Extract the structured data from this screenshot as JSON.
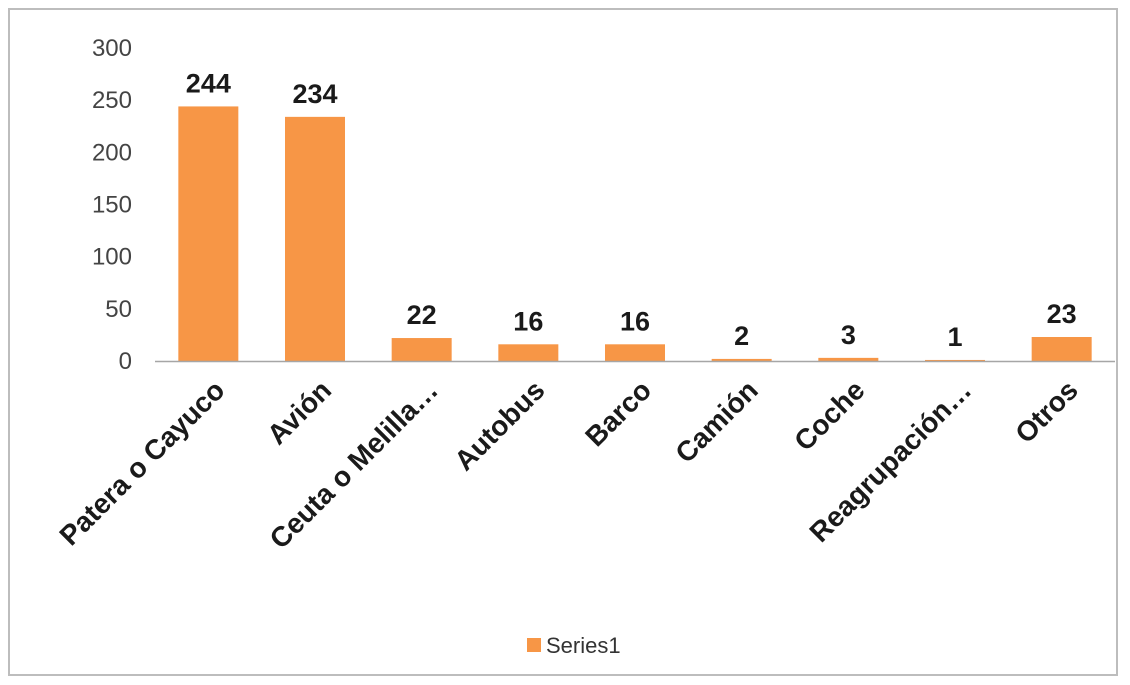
{
  "chart_data": {
    "type": "bar",
    "categories": [
      "Patera o Cayuco",
      "Avión",
      "Ceuta o Melilla…",
      "Autobus",
      "Barco",
      "Camión",
      "Coche",
      "Reagrupación…",
      "Otros"
    ],
    "series": [
      {
        "name": "Series1",
        "values": [
          244,
          234,
          22,
          16,
          16,
          2,
          3,
          1,
          23
        ],
        "color": "#f79646"
      }
    ],
    "data_labels": [
      "244",
      "234",
      "22",
      "16",
      "16",
      "2",
      "3",
      "1",
      "23"
    ],
    "ylim": [
      0,
      300
    ],
    "y_ticks": [
      0,
      50,
      100,
      150,
      200,
      250,
      300
    ],
    "y_tick_labels": [
      "0",
      "50",
      "100",
      "150",
      "200",
      "250",
      "300"
    ],
    "grid": false,
    "legend": {
      "position": "bottom",
      "label": "Series1"
    },
    "colors": {
      "bar": "#f79646",
      "axis": "#a6a6a6",
      "frame": "#bdbdbd"
    }
  }
}
